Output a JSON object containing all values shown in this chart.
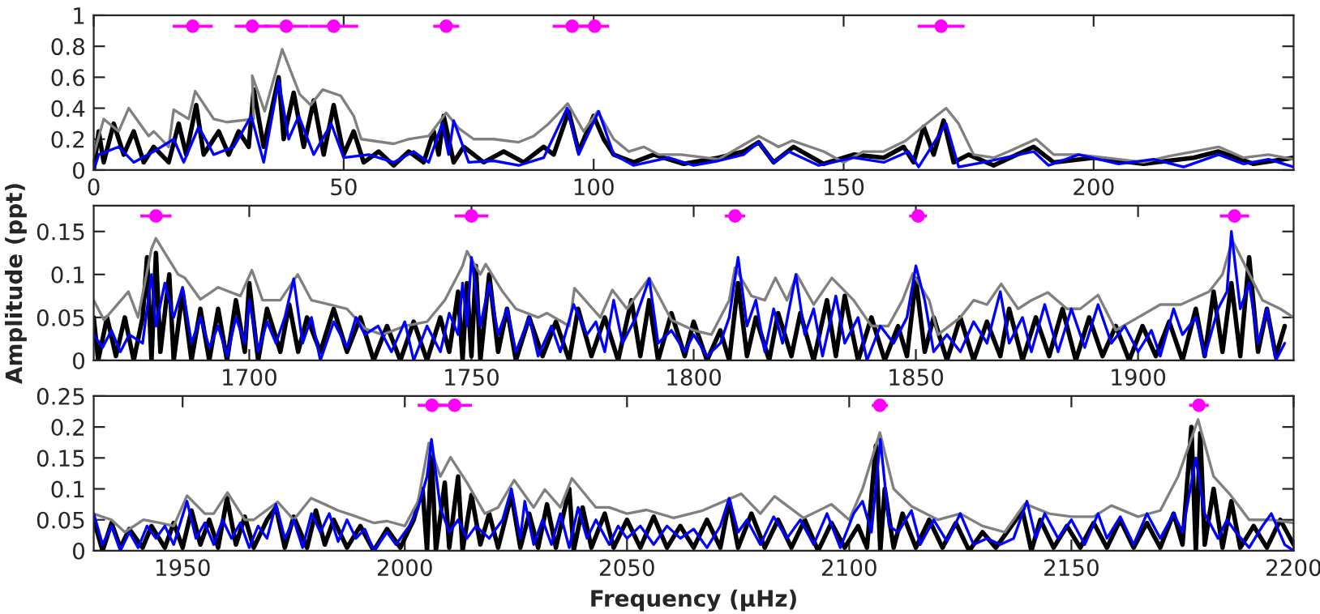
{
  "chart_data": [
    {
      "type": "line",
      "xlim": [
        0,
        240
      ],
      "ylim": [
        0,
        1
      ],
      "xticks": [
        0,
        50,
        100,
        150,
        200
      ],
      "yticks": [
        0,
        0.2,
        0.4,
        0.6,
        0.8,
        1
      ],
      "series": [
        {
          "type": "line",
          "color": "#000000",
          "x": [
            0,
            1,
            2,
            4,
            6,
            8,
            10,
            12,
            15,
            17,
            18.5,
            20.5,
            22,
            25,
            27,
            29,
            31,
            32,
            34,
            37,
            38,
            40,
            42,
            44,
            46,
            48,
            50,
            52,
            54,
            57,
            60,
            63,
            66,
            68,
            69,
            70,
            72,
            74,
            78,
            82,
            86,
            90,
            92,
            95,
            97,
            100,
            102,
            104,
            108,
            112,
            118,
            125,
            130,
            133,
            136,
            140,
            146,
            152,
            158,
            162,
            164,
            166,
            168,
            170,
            172,
            175,
            180,
            188,
            192,
            200,
            210,
            220,
            225,
            232,
            240
          ],
          "values": [
            0,
            0.25,
            0.05,
            0.3,
            0.1,
            0.25,
            0.05,
            0.15,
            0.05,
            0.3,
            0.1,
            0.42,
            0.1,
            0.25,
            0.1,
            0.25,
            0.15,
            0.52,
            0.15,
            0.6,
            0.2,
            0.5,
            0.15,
            0.45,
            0.1,
            0.42,
            0.1,
            0.25,
            0.05,
            0.12,
            0.03,
            0.12,
            0.05,
            0.25,
            0.1,
            0.35,
            0.05,
            0.15,
            0.05,
            0.12,
            0.05,
            0.15,
            0.1,
            0.38,
            0.12,
            0.35,
            0.2,
            0.1,
            0.05,
            0.1,
            0.04,
            0.08,
            0.12,
            0.18,
            0.05,
            0.15,
            0.04,
            0.1,
            0.08,
            0.15,
            0.05,
            0.28,
            0.1,
            0.32,
            0.05,
            0.1,
            0.03,
            0.15,
            0.05,
            0.08,
            0.04,
            0.08,
            0.12,
            0.04,
            0.08
          ]
        },
        {
          "type": "line",
          "color": "#808080",
          "x": [
            0,
            2,
            5,
            7,
            11,
            12,
            15,
            16,
            19,
            20.3,
            24,
            26.6,
            32,
            31.7,
            34.2,
            37.7,
            41.2,
            43.4,
            45.8,
            49.4,
            52,
            53.5,
            60,
            63,
            67,
            70.5,
            73,
            76,
            80,
            85,
            88,
            91,
            94.8,
            98,
            100.8,
            104,
            107,
            110,
            113,
            117.5,
            125,
            133,
            137,
            139.7,
            146,
            150,
            154,
            158,
            162.4,
            166.2,
            170.5,
            173,
            176,
            180,
            183,
            188.5,
            192,
            197,
            205,
            210,
            215,
            225,
            230,
            235,
            240
          ],
          "values": [
            0.1,
            0.33,
            0.25,
            0.4,
            0.22,
            0.25,
            0.15,
            0.39,
            0.33,
            0.51,
            0.33,
            0.31,
            0.33,
            0.61,
            0.38,
            0.78,
            0.49,
            0.42,
            0.52,
            0.48,
            0.35,
            0.2,
            0.17,
            0.2,
            0.22,
            0.37,
            0.27,
            0.2,
            0.2,
            0.18,
            0.22,
            0.3,
            0.43,
            0.25,
            0.38,
            0.2,
            0.12,
            0.15,
            0.1,
            0.1,
            0.07,
            0.22,
            0.15,
            0.19,
            0.12,
            0.05,
            0.12,
            0.12,
            0.19,
            0.29,
            0.4,
            0.3,
            0.1,
            0.08,
            0.12,
            0.2,
            0.1,
            0.1,
            0.07,
            0.05,
            0.09,
            0.15,
            0.08,
            0.1,
            0.07
          ]
        },
        {
          "type": "line",
          "color": "#0000ff",
          "x": [
            0,
            1,
            5,
            8,
            12,
            16,
            18,
            21,
            24,
            28,
            31.5,
            34,
            37,
            39,
            41,
            44,
            47.5,
            50,
            55,
            60,
            64,
            67,
            69.7,
            71,
            72,
            75,
            80,
            85,
            90,
            94.7,
            97,
            101,
            104,
            108,
            115,
            120,
            125,
            130,
            133,
            136,
            139,
            145,
            152,
            158,
            163,
            165,
            170.5,
            173,
            178,
            188,
            191,
            197,
            205,
            212,
            218,
            225,
            230,
            235,
            240
          ],
          "values": [
            0,
            0.1,
            0.15,
            0.05,
            0.12,
            0.2,
            0.05,
            0.28,
            0.1,
            0.15,
            0.35,
            0.05,
            0.58,
            0.2,
            0.35,
            0.1,
            0.3,
            0.08,
            0.1,
            0.05,
            0.12,
            0.05,
            0.3,
            0.1,
            0.32,
            0.05,
            0.06,
            0.03,
            0.08,
            0.4,
            0.1,
            0.38,
            0.1,
            0.03,
            0.08,
            0.03,
            0.06,
            0.1,
            0.18,
            0.05,
            0.12,
            0.03,
            0.08,
            0.05,
            0.12,
            0.02,
            0.3,
            0.02,
            0.05,
            0.12,
            0.03,
            0.1,
            0.04,
            0.07,
            0.02,
            0.1,
            0.04,
            0.07,
            0.02
          ]
        },
        {
          "type": "scatter",
          "color": "#ff00ff",
          "marker": "circle",
          "x": [
            19.8,
            31.7,
            38.5,
            48.0,
            70.5,
            95.7,
            100.2,
            169.5
          ],
          "values": [
            0.93,
            0.93,
            0.93,
            0.93,
            0.93,
            0.93,
            0.93,
            0.93
          ],
          "xerrors": [
            4,
            3.5,
            4.5,
            4.9,
            2.6,
            3.9,
            2.9,
            4.7
          ]
        }
      ]
    },
    {
      "type": "line",
      "ylabel": "Amplitude (ppt)",
      "xlim": [
        1665,
        1935
      ],
      "ylim": [
        0,
        0.18
      ],
      "xticks": [
        1700,
        1750,
        1800,
        1850,
        1900
      ],
      "yticks": [
        0,
        0.05,
        0.1,
        0.15
      ],
      "series": [
        {
          "type": "line",
          "color": "#000000",
          "x": [
            1665,
            1666,
            1668,
            1670,
            1672,
            1674,
            1676,
            1677,
            1678,
            1679,
            1680,
            1682,
            1683,
            1685,
            1687,
            1689,
            1691,
            1693,
            1695,
            1697,
            1699,
            1700,
            1702,
            1704,
            1707,
            1709,
            1711,
            1713,
            1716,
            1719,
            1722,
            1725,
            1728,
            1731,
            1734,
            1737,
            1740,
            1743,
            1745,
            1747,
            1748,
            1749,
            1750,
            1751,
            1752,
            1754,
            1756,
            1758,
            1760,
            1763,
            1766,
            1769,
            1772,
            1774,
            1777,
            1780,
            1783,
            1786,
            1788,
            1790,
            1792,
            1795,
            1798,
            1800,
            1803,
            1806,
            1808,
            1810,
            1812,
            1814,
            1817,
            1819,
            1822,
            1824,
            1827,
            1830,
            1832,
            1834,
            1837,
            1840,
            1843,
            1846,
            1848,
            1850,
            1852,
            1854,
            1857,
            1860,
            1863,
            1866,
            1869,
            1871,
            1874,
            1877,
            1880,
            1883,
            1886,
            1889,
            1892,
            1895,
            1898,
            1901,
            1904,
            1907,
            1910,
            1913,
            1915,
            1917,
            1919,
            1921,
            1923,
            1925,
            1927,
            1929,
            1931,
            1933
          ],
          "values": [
            0.05,
            0,
            0.05,
            0.005,
            0.05,
            0,
            0.05,
            0.12,
            0,
            0.125,
            0.01,
            0.1,
            0,
            0.08,
            0,
            0.06,
            0,
            0.06,
            0,
            0.07,
            0.01,
            0.09,
            0,
            0.06,
            0.01,
            0.065,
            0.01,
            0.05,
            0.01,
            0.06,
            0.01,
            0.05,
            0,
            0.04,
            0,
            0.045,
            0,
            0.05,
            0.01,
            0.08,
            0,
            0.09,
            0.005,
            0.11,
            0,
            0.1,
            0.01,
            0.06,
            0,
            0.05,
            0.005,
            0.045,
            0,
            0.06,
            0.005,
            0.05,
            0,
            0.07,
            0.005,
            0.07,
            0,
            0.055,
            0.005,
            0.045,
            0,
            0.035,
            0,
            0.09,
            0.005,
            0.05,
            0,
            0.055,
            0.005,
            0.055,
            0,
            0.07,
            0.005,
            0.075,
            0,
            0.05,
            0,
            0.04,
            0.005,
            0.095,
            0.01,
            0.05,
            0,
            0.05,
            0,
            0.045,
            0.005,
            0.06,
            0,
            0.05,
            0.005,
            0.06,
            0,
            0.05,
            0.005,
            0.04,
            0,
            0.04,
            0.005,
            0.045,
            0,
            0.06,
            0.005,
            0.08,
            0.01,
            0.09,
            0.005,
            0.12,
            0.01,
            0.06,
            0.005,
            0.04
          ]
        },
        {
          "type": "line",
          "color": "#808080",
          "x": [
            1665,
            1667.3,
            1672.8,
            1675,
            1678,
            1679,
            1684,
            1685.5,
            1689,
            1693,
            1698,
            1700.6,
            1703,
            1707,
            1710.9,
            1714,
            1718,
            1722,
            1726,
            1730,
            1735,
            1740,
            1744,
            1748,
            1749,
            1752,
            1753.2,
            1757,
            1760,
            1765,
            1767,
            1772,
            1773.2,
            1779,
            1781.7,
            1785,
            1790,
            1795,
            1800,
            1804,
            1808,
            1809.3,
            1813,
            1816,
            1818.4,
            1821,
            1823.2,
            1827,
            1831.1,
            1836,
            1840,
            1843.8,
            1847,
            1849.3,
            1853,
            1855,
            1860,
            1863,
            1866,
            1869.2,
            1873,
            1876,
            1879.7,
            1884,
            1887,
            1891,
            1895,
            1900,
            1905,
            1909.6,
            1916,
            1919,
            1921.2,
            1928,
            1932,
            1935
          ],
          "values": [
            0.07,
            0.047,
            0.08,
            0.05,
            0.13,
            0.142,
            0.1,
            0.096,
            0.071,
            0.085,
            0.075,
            0.105,
            0.07,
            0.07,
            0.1,
            0.07,
            0.065,
            0.06,
            0.037,
            0.03,
            0.04,
            0.045,
            0.07,
            0.11,
            0.127,
            0.1,
            0.112,
            0.08,
            0.06,
            0.05,
            0.055,
            0.04,
            0.084,
            0.05,
            0.082,
            0.06,
            0.096,
            0.047,
            0.035,
            0.03,
            0.07,
            0.108,
            0.075,
            0.07,
            0.096,
            0.07,
            0.1,
            0.065,
            0.096,
            0.07,
            0.04,
            0.04,
            0.07,
            0.101,
            0.07,
            0.03,
            0.05,
            0.07,
            0.065,
            0.089,
            0.06,
            0.07,
            0.079,
            0.06,
            0.06,
            0.076,
            0.035,
            0.05,
            0.065,
            0.065,
            0.08,
            0.1,
            0.14,
            0.07,
            0.06,
            0.05
          ]
        },
        {
          "type": "line",
          "color": "#0000ff",
          "x": [
            1665,
            1667,
            1669,
            1671,
            1673,
            1676,
            1678,
            1679,
            1681,
            1683,
            1685,
            1687,
            1689,
            1691,
            1693,
            1695,
            1697,
            1699,
            1700,
            1702,
            1704,
            1706,
            1708,
            1710,
            1712,
            1714,
            1716,
            1719,
            1722,
            1724,
            1726,
            1729,
            1732,
            1735,
            1737,
            1740,
            1743,
            1745,
            1747,
            1748,
            1749,
            1750,
            1752,
            1754,
            1756,
            1758,
            1760,
            1763,
            1765,
            1768,
            1770,
            1773,
            1776,
            1778,
            1780,
            1782,
            1784,
            1787,
            1790,
            1792,
            1795,
            1798,
            1800,
            1803,
            1806,
            1808,
            1810,
            1812,
            1814,
            1816,
            1818,
            1820,
            1823,
            1825,
            1827,
            1829,
            1832,
            1834,
            1837,
            1839,
            1842,
            1845,
            1848,
            1850,
            1852,
            1854,
            1857,
            1860,
            1863,
            1866,
            1869,
            1871,
            1874,
            1876,
            1879,
            1882,
            1885,
            1888,
            1891,
            1894,
            1897,
            1900,
            1903,
            1905,
            1908,
            1910,
            1913,
            1915,
            1918,
            1920,
            1921,
            1923,
            1925,
            1927,
            1929,
            1931,
            1933
          ],
          "values": [
            0.03,
            0.015,
            0.035,
            0.01,
            0.03,
            0.02,
            0.1,
            0.04,
            0.09,
            0.05,
            0.085,
            0.02,
            0.05,
            0.015,
            0.04,
            0.005,
            0.05,
            0.02,
            0.07,
            0.01,
            0.045,
            0.02,
            0.05,
            0.095,
            0.02,
            0.05,
            0,
            0.045,
            0.015,
            0.05,
            0.03,
            0.04,
            0.01,
            0.045,
            0,
            0.04,
            0.01,
            0.055,
            0.03,
            0.09,
            0.04,
            0.12,
            0.04,
            0.09,
            0.03,
            0.06,
            0.01,
            0.05,
            0.005,
            0.04,
            0.01,
            0.065,
            0.03,
            0.045,
            0.01,
            0.07,
            0.02,
            0.05,
            0.095,
            0.02,
            0.035,
            0.01,
            0.03,
            0.005,
            0.02,
            0.05,
            0.12,
            0.04,
            0.07,
            0.01,
            0.06,
            0.02,
            0.1,
            0.03,
            0.06,
            0.005,
            0.075,
            0.02,
            0.05,
            0,
            0.04,
            0.02,
            0.05,
            0.11,
            0.07,
            0.01,
            0.03,
            0.01,
            0.045,
            0.02,
            0.08,
            0.02,
            0.05,
            0.01,
            0.065,
            0.01,
            0.06,
            0.015,
            0.065,
            0.02,
            0.04,
            0.01,
            0.035,
            0.005,
            0.06,
            0.03,
            0.05,
            0.005,
            0.06,
            0.08,
            0.15,
            0.06,
            0.09,
            0.02,
            0.06,
            0,
            0.02
          ]
        },
        {
          "type": "scatter",
          "color": "#ff00ff",
          "marker": "circle",
          "x": [
            1679,
            1750,
            1809.3,
            1850.5,
            1921.7
          ],
          "values": [
            0.168,
            0.168,
            0.168,
            0.168,
            0.168
          ],
          "xerrors": [
            3.5,
            3.8,
            2.3,
            2,
            3.3
          ]
        }
      ]
    },
    {
      "type": "line",
      "xlabel": "Frequency (μHz)",
      "xlim": [
        1930,
        2200
      ],
      "ylim": [
        0,
        0.25
      ],
      "xticks": [
        1950,
        2000,
        2050,
        2100,
        2150,
        2200
      ],
      "yticks": [
        0,
        0.05,
        0.1,
        0.15,
        0.2,
        0.25
      ],
      "series": [
        {
          "type": "line",
          "color": "#000000",
          "x": [
            1930,
            1932,
            1934,
            1936,
            1938,
            1941,
            1943,
            1946,
            1948,
            1950,
            1952,
            1954,
            1956,
            1958,
            1960,
            1962,
            1964,
            1966,
            1969,
            1971,
            1973,
            1975,
            1978,
            1980,
            1982,
            1984,
            1987,
            1990,
            1993,
            1996,
            1999,
            2002,
            2004,
            2005,
            2006,
            2007,
            2009,
            2010,
            2012,
            2013,
            2015,
            2017,
            2019,
            2021,
            2024,
            2026,
            2028,
            2030,
            2032,
            2034,
            2037,
            2038,
            2040,
            2042,
            2045,
            2047,
            2050,
            2053,
            2056,
            2059,
            2062,
            2065,
            2068,
            2071,
            2073,
            2075,
            2078,
            2081,
            2084,
            2087,
            2090,
            2093,
            2096,
            2099,
            2102,
            2104,
            2106,
            2107,
            2108,
            2110,
            2112,
            2115,
            2118,
            2121,
            2124,
            2127,
            2130,
            2133,
            2136,
            2139,
            2141,
            2143,
            2146,
            2149,
            2152,
            2155,
            2158,
            2161,
            2164,
            2167,
            2170,
            2173,
            2175,
            2177,
            2178,
            2179,
            2180,
            2182,
            2184,
            2186,
            2188,
            2191,
            2194,
            2197,
            2200
          ],
          "values": [
            0.05,
            0,
            0.045,
            0.005,
            0.035,
            0.005,
            0.04,
            0.005,
            0.045,
            0.005,
            0.065,
            0.01,
            0.05,
            0.005,
            0.085,
            0.01,
            0.055,
            0.005,
            0.05,
            0.07,
            0.005,
            0.055,
            0.005,
            0.065,
            0.01,
            0.05,
            0.005,
            0.04,
            0,
            0.035,
            0.005,
            0.05,
            0.1,
            0,
            0.16,
            0,
            0.11,
            0.005,
            0.12,
            0,
            0.09,
            0.01,
            0.06,
            0.005,
            0.09,
            0.005,
            0.06,
            0.005,
            0.075,
            0.005,
            0.1,
            0,
            0.07,
            0.005,
            0.06,
            0.005,
            0.05,
            0.005,
            0.055,
            0.005,
            0.04,
            0.005,
            0.05,
            0.005,
            0.08,
            0.005,
            0.06,
            0.005,
            0.05,
            0.005,
            0.05,
            0,
            0.045,
            0.005,
            0.04,
            0.005,
            0.17,
            0,
            0.1,
            0.005,
            0.06,
            0.005,
            0.05,
            0.005,
            0.045,
            0,
            0.03,
            0.005,
            0.035,
            0.065,
            0,
            0.05,
            0.005,
            0.04,
            0.005,
            0.045,
            0.005,
            0.05,
            0.005,
            0.045,
            0.005,
            0.06,
            0.01,
            0.2,
            0,
            0.19,
            0.01,
            0.1,
            0.005,
            0.08,
            0.005,
            0.04,
            0.005,
            0.05,
            0.01
          ]
        },
        {
          "type": "line",
          "color": "#808080",
          "x": [
            1930.3,
            1934,
            1937,
            1941.2,
            1945,
            1948,
            1951,
            1955,
            1957,
            1960.1,
            1964,
            1966,
            1971.4,
            1975,
            1978.9,
            1982,
            1985,
            1988.4,
            1993,
            1996,
            2000,
            2003,
            2005.4,
            2008,
            2010.3,
            2014,
            2018,
            2021,
            2024.6,
            2029,
            2031.5,
            2035,
            2037.6,
            2043,
            2046,
            2050,
            2054.4,
            2060.5,
            2067,
            2075.7,
            2080,
            2083.2,
            2089.7,
            2096,
            2100,
            2103,
            2106.9,
            2110,
            2114,
            2120,
            2125,
            2130,
            2135,
            2139.5,
            2145,
            2150,
            2155,
            2159,
            2165,
            2170,
            2174,
            2178.5,
            2182,
            2185.8,
            2190,
            2195,
            2200
          ],
          "values": [
            0.059,
            0.05,
            0.03,
            0.05,
            0.045,
            0.04,
            0.089,
            0.06,
            0.06,
            0.094,
            0.05,
            0.05,
            0.079,
            0.05,
            0.085,
            0.075,
            0.065,
            0.057,
            0.045,
            0.048,
            0.04,
            0.08,
            0.174,
            0.12,
            0.151,
            0.11,
            0.06,
            0.07,
            0.114,
            0.07,
            0.099,
            0.07,
            0.117,
            0.07,
            0.07,
            0.06,
            0.066,
            0.053,
            0.065,
            0.092,
            0.06,
            0.088,
            0.053,
            0.075,
            0.05,
            0.1,
            0.191,
            0.1,
            0.072,
            0.05,
            0.06,
            0.04,
            0.03,
            0.076,
            0.06,
            0.055,
            0.055,
            0.073,
            0.055,
            0.065,
            0.12,
            0.212,
            0.12,
            0.09,
            0.05,
            0.05,
            0.045
          ]
        },
        {
          "type": "line",
          "color": "#0000ff",
          "x": [
            1930,
            1932,
            1934,
            1936,
            1938,
            1940,
            1942,
            1944,
            1946,
            1948,
            1951,
            1953,
            1955,
            1957,
            1959,
            1961,
            1963,
            1965,
            1967,
            1969,
            1971,
            1973,
            1975,
            1977,
            1979,
            1981,
            1983,
            1985,
            1987,
            1989,
            1991,
            1993,
            1996,
            1998,
            2001,
            2003,
            2005,
            2006,
            2008,
            2010,
            2012,
            2014,
            2016,
            2019,
            2022,
            2024,
            2026,
            2027,
            2029,
            2031,
            2033,
            2035,
            2037,
            2039,
            2041,
            2043,
            2046,
            2048,
            2050,
            2053,
            2056,
            2059,
            2062,
            2065,
            2068,
            2071,
            2073,
            2075,
            2077,
            2080,
            2083,
            2086,
            2089,
            2092,
            2095,
            2098,
            2101,
            2103,
            2105,
            2107,
            2109,
            2111,
            2114,
            2116,
            2119,
            2122,
            2125,
            2128,
            2131,
            2134,
            2137,
            2140,
            2142,
            2144,
            2147,
            2150,
            2153,
            2156,
            2158,
            2161,
            2164,
            2167,
            2170,
            2173,
            2175,
            2178,
            2180,
            2183,
            2185,
            2187,
            2190,
            2193,
            2195,
            2198,
            2200
          ],
          "values": [
            0.06,
            0.01,
            0.04,
            0,
            0.03,
            0.005,
            0.04,
            0.02,
            0.04,
            0.01,
            0.08,
            0.02,
            0.045,
            0.01,
            0.05,
            0.02,
            0.045,
            0.005,
            0.04,
            0.02,
            0.075,
            0.02,
            0.05,
            0.005,
            0.06,
            0.03,
            0.06,
            0.015,
            0.05,
            0.02,
            0.035,
            0,
            0.03,
            0.01,
            0.04,
            0.07,
            0.12,
            0.18,
            0.07,
            0.03,
            0.05,
            0.02,
            0.04,
            0.02,
            0.05,
            0.1,
            0.02,
            0.08,
            0.01,
            0.05,
            0.01,
            0.06,
            0.005,
            0.07,
            0.02,
            0.05,
            0.01,
            0.04,
            0.02,
            0.04,
            0.01,
            0.04,
            0.02,
            0.035,
            0.005,
            0.04,
            0.085,
            0.03,
            0.05,
            0.01,
            0.055,
            0.02,
            0.05,
            0.01,
            0.06,
            0.005,
            0.06,
            0.08,
            0.03,
            0.18,
            0.04,
            0.03,
            0.065,
            0.01,
            0.05,
            0.015,
            0.06,
            0.01,
            0.02,
            0.01,
            0.02,
            0.08,
            0.02,
            0.06,
            0.02,
            0.05,
            0.01,
            0.06,
            0.02,
            0.055,
            0.01,
            0.06,
            0.02,
            0.06,
            0.03,
            0.15,
            0.06,
            0.02,
            0.05,
            0.03,
            0.005,
            0.04,
            0.06,
            0.01,
            0
          ]
        },
        {
          "type": "scatter",
          "color": "#ff00ff",
          "marker": "circle",
          "x": [
            2006.1,
            2011.2,
            2106.9,
            2178.7
          ],
          "values": [
            0.235,
            0.235,
            0.235,
            0.235
          ],
          "xerrors": [
            3.2,
            3.9,
            1.8,
            2.2
          ]
        }
      ]
    }
  ]
}
